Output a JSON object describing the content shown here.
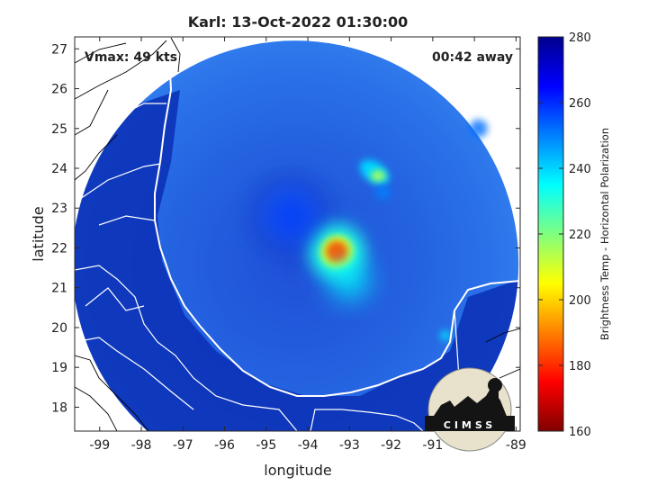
{
  "chart_data": {
    "type": "heatmap",
    "title": "Karl: 13-Oct-2022 01:30:00",
    "xlabel": "longitude",
    "ylabel": "latitude",
    "xlim": [
      -99.6,
      -88.9
    ],
    "ylim": [
      17.4,
      27.3
    ],
    "xticks": [
      -99,
      -98,
      -97,
      -96,
      -95,
      -94,
      -93,
      -92,
      -91,
      -90,
      -89
    ],
    "yticks": [
      18,
      19,
      20,
      21,
      22,
      23,
      24,
      25,
      26,
      27
    ],
    "annotation_left": "Vmax: 49 kts",
    "annotation_right": "00:42 away",
    "colorbar": {
      "label": "Brightness Temp - Horizontal Polarization",
      "range": [
        160,
        280
      ],
      "ticks": [
        160,
        180,
        200,
        220,
        240,
        260,
        280
      ]
    },
    "scan_center": [
      -94.3,
      21.6
    ],
    "features": [
      {
        "lon": -93.3,
        "lat": 21.9,
        "value": 185
      },
      {
        "lon": -92.4,
        "lat": 23.9,
        "value": 215
      },
      {
        "lon": -92.2,
        "lat": 23.4,
        "value": 250
      },
      {
        "lon": -94.4,
        "lat": 22.8,
        "value": 258
      },
      {
        "lon": -93.0,
        "lat": 21.2,
        "value": 235
      },
      {
        "lon": -90.7,
        "lat": 19.8,
        "value": 238
      },
      {
        "lon": -89.9,
        "lat": 25.0,
        "value": 252
      }
    ]
  },
  "logo": {
    "text": "CIMSS"
  }
}
